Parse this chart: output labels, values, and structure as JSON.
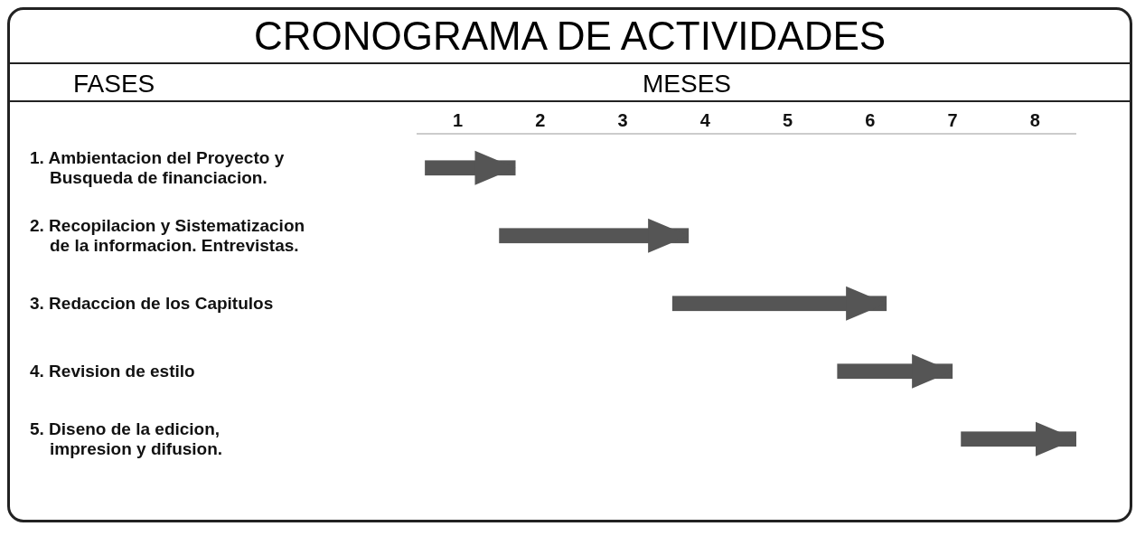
{
  "chart_data": {
    "type": "bar",
    "orientation": "horizontal",
    "title": "CRONOGRAMA DE ACTIVIDADES",
    "xlabel": "MESES",
    "ylabel": "FASES",
    "categories": [
      "1. Ambientacion del Proyecto y\nBusqueda de financiacion.",
      "2. Recopilacion y Sistematizacion\nde la informacion. Entrevistas.",
      "3. Redaccion de los Capitulos",
      "4. Revision de estilo",
      "5. Diseno de la edicion,\nimpresion y difusion."
    ],
    "base": [
      0.6,
      1.5,
      3.6,
      5.6,
      7.1
    ],
    "values": [
      1.1,
      2.3,
      2.6,
      1.4,
      1.4
    ],
    "color": "#555555",
    "xlim": [
      0.5,
      8.5
    ],
    "xticks": [
      1,
      2,
      3,
      4,
      5,
      6,
      7,
      8
    ]
  }
}
